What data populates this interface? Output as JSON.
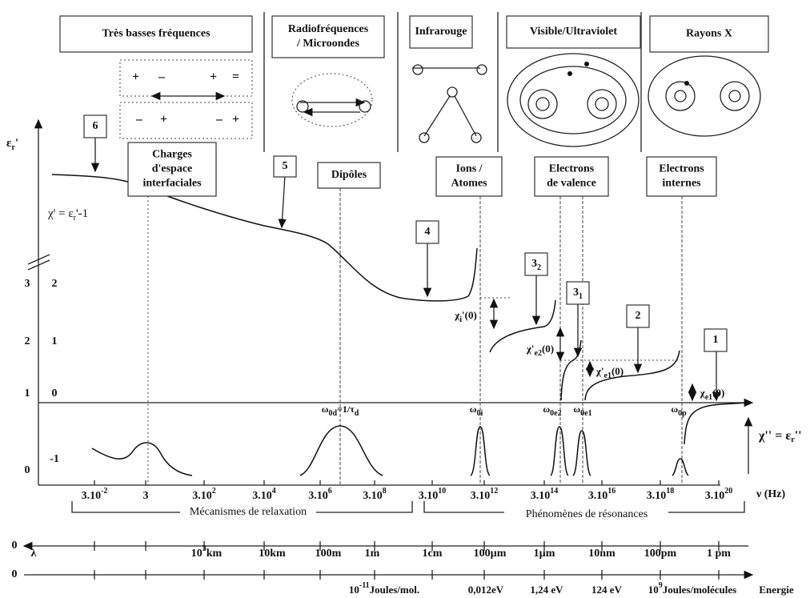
{
  "regions": [
    "Très basses fréquences",
    [
      "Radiofréquences",
      "/ Microondes"
    ],
    "Infrarouge",
    "Visible/Ultraviolet",
    "Rayons X"
  ],
  "mechanisms": [
    [
      "Charges",
      "d'espace",
      "interfaciales"
    ],
    [
      "Dipôles"
    ],
    [
      "Ions /",
      "Atomes"
    ],
    [
      "Electrons",
      "de valence"
    ],
    [
      "Electrons",
      "internes"
    ]
  ],
  "markers": [
    [
      "6"
    ],
    [
      "5"
    ],
    [
      "4"
    ],
    [
      "3",
      "2"
    ],
    [
      "3",
      "1"
    ],
    [
      "2"
    ],
    [
      "1"
    ]
  ],
  "axes": {
    "eps_label": [
      "ε",
      "r",
      "'"
    ],
    "chi_label": [
      "χ' = ε",
      "r",
      "'-1"
    ],
    "loss_label": [
      "χ'' = ε",
      "r",
      "''"
    ],
    "x_label": "ν (Hz)",
    "eps_ticks": [
      "3",
      "2",
      "1",
      "0"
    ],
    "chi_ticks": [
      "2",
      "1",
      "0",
      "-1"
    ],
    "freq_ticks": [
      [
        "3.10",
        "-2"
      ],
      [
        "3"
      ],
      [
        "3.10",
        "2"
      ],
      [
        "3.10",
        "4"
      ],
      [
        "3.10",
        "6"
      ],
      [
        "3.10",
        "8"
      ],
      [
        "3.10",
        "10"
      ],
      [
        "3.10",
        "12"
      ],
      [
        "3.10",
        "14"
      ],
      [
        "3.10",
        "16"
      ],
      [
        "3.10",
        "18"
      ],
      [
        "3.10",
        "20"
      ]
    ]
  },
  "resonances": [
    [
      "ω",
      "0d",
      "=1/τ",
      "d"
    ],
    [
      "ω",
      "0i"
    ],
    [
      "ω",
      "0e2"
    ],
    [
      "ω",
      "0e1"
    ],
    [
      "ω",
      "0p"
    ]
  ],
  "susceptibilities": [
    [
      "χ",
      "i",
      "'(0)"
    ],
    [
      "χ'",
      "e2",
      "(0)"
    ],
    [
      "χ'",
      "e1",
      "(0)"
    ],
    [
      "χ",
      "e1",
      "(0)"
    ]
  ],
  "brackets": [
    "Mécanismes de relaxation",
    "Phénomènes de résonances"
  ],
  "wavelength": {
    "origin": "0",
    "labels": [
      [
        "λ"
      ],
      [
        "10",
        "3",
        "km"
      ],
      [
        "10km"
      ],
      [
        "100m"
      ],
      [
        "1m"
      ],
      [
        "1cm"
      ],
      [
        "100µm"
      ],
      [
        "1µm"
      ],
      [
        "10nm"
      ],
      [
        "100pm"
      ],
      [
        "1 pm"
      ]
    ]
  },
  "energy": {
    "origin": "0",
    "labels": [
      [
        "10",
        "-11",
        "Joules/mol."
      ],
      [
        "0,012eV"
      ],
      [
        "1,24 eV"
      ],
      [
        "124 eV"
      ],
      [
        "10",
        "9",
        "Joules/molécules"
      ],
      [
        "Energie"
      ]
    ]
  }
}
